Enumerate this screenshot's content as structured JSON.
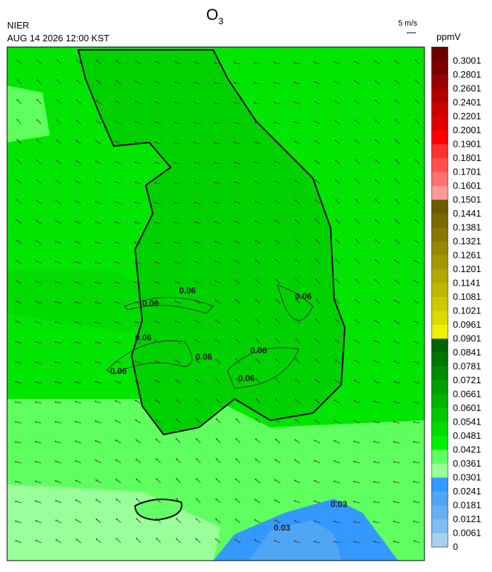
{
  "header": {
    "title": {
      "main": "O",
      "subscript": "3"
    },
    "source": "NIER",
    "datetime": "AUG 14 2026 12:00 KST"
  },
  "wind_scale": {
    "label": "5 m/s"
  },
  "colorbar": {
    "unit": "ppmV",
    "entries": [
      {
        "label": "0.3001",
        "color": "#6e0000"
      },
      {
        "label": "0.2801",
        "color": "#800000"
      },
      {
        "label": "0.2601",
        "color": "#990000"
      },
      {
        "label": "0.2401",
        "color": "#b30000"
      },
      {
        "label": "0.2201",
        "color": "#cc0000"
      },
      {
        "label": "0.2001",
        "color": "#e00000"
      },
      {
        "label": "0.1901",
        "color": "#ff0000"
      },
      {
        "label": "0.1801",
        "color": "#ff3030"
      },
      {
        "label": "0.1701",
        "color": "#ff5050"
      },
      {
        "label": "0.1601",
        "color": "#ff7070"
      },
      {
        "label": "0.1501",
        "color": "#ff9999"
      },
      {
        "label": "0.1441",
        "color": "#6b5a00"
      },
      {
        "label": "0.1381",
        "color": "#7a6a00"
      },
      {
        "label": "0.1321",
        "color": "#887800"
      },
      {
        "label": "0.1261",
        "color": "#968800"
      },
      {
        "label": "0.1201",
        "color": "#a49800"
      },
      {
        "label": "0.1141",
        "color": "#b2a800"
      },
      {
        "label": "0.1081",
        "color": "#c0b800"
      },
      {
        "label": "0.1021",
        "color": "#cec800"
      },
      {
        "label": "0.0961",
        "color": "#dcd800"
      },
      {
        "label": "0.0901",
        "color": "#f0f000"
      },
      {
        "label": "0.0841",
        "color": "#006400"
      },
      {
        "label": "0.0781",
        "color": "#007800"
      },
      {
        "label": "0.0721",
        "color": "#008c00"
      },
      {
        "label": "0.0661",
        "color": "#00a000"
      },
      {
        "label": "0.0601",
        "color": "#00b400"
      },
      {
        "label": "0.0541",
        "color": "#00c800"
      },
      {
        "label": "0.0481",
        "color": "#00dc00"
      },
      {
        "label": "0.0421",
        "color": "#00f000"
      },
      {
        "label": "0.0361",
        "color": "#60ff60"
      },
      {
        "label": "0.0301",
        "color": "#99ff99"
      },
      {
        "label": "0.0241",
        "color": "#3399ff"
      },
      {
        "label": "0.0181",
        "color": "#4fa6f5"
      },
      {
        "label": "0.0121",
        "color": "#66b0f0"
      },
      {
        "label": "0.0061",
        "color": "#80bcef"
      },
      {
        "label": "0",
        "color": "#a6d0ee"
      }
    ]
  },
  "contour_labels": [
    "0.06",
    "0.06",
    "0.06",
    "0.06",
    "0.06",
    "0.06",
    "0.06",
    "0.06",
    "0.03",
    "0.03"
  ]
}
